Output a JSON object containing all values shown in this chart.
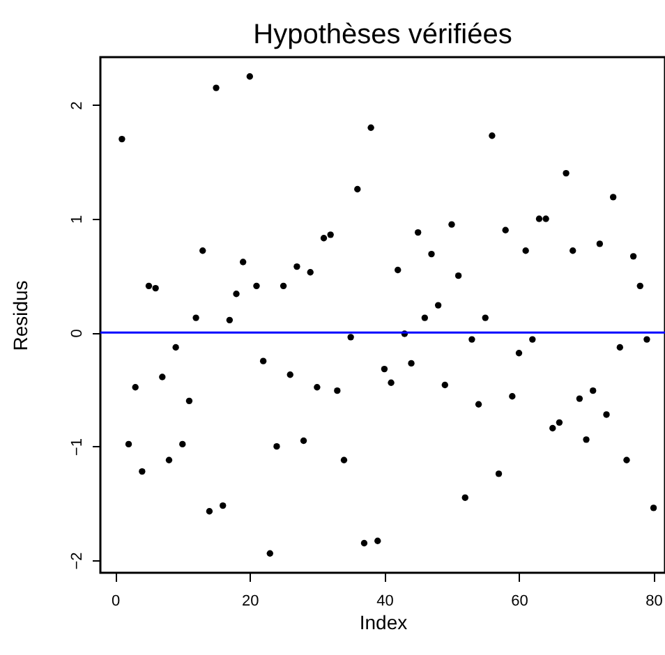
{
  "chart_data": {
    "type": "scatter",
    "title": "Hypothèses vérifiées",
    "xlabel": "Index",
    "ylabel": "Residus",
    "x": [
      1,
      2,
      3,
      4,
      5,
      6,
      7,
      8,
      9,
      10,
      11,
      12,
      13,
      14,
      15,
      16,
      17,
      18,
      19,
      20,
      21,
      22,
      23,
      24,
      25,
      26,
      27,
      28,
      29,
      30,
      31,
      32,
      33,
      34,
      35,
      36,
      37,
      38,
      39,
      40,
      41,
      42,
      43,
      44,
      45,
      46,
      47,
      48,
      49,
      50,
      51,
      52,
      53,
      54,
      55,
      56,
      57,
      58,
      59,
      60,
      61,
      62,
      63,
      64,
      65,
      66,
      67,
      68,
      69,
      70,
      71,
      72,
      73,
      74,
      75,
      76,
      77,
      78,
      79,
      80
    ],
    "series": [
      {
        "color": "#000000",
        "values": [
          1.7,
          -0.98,
          -0.48,
          -1.22,
          0.41,
          0.39,
          -0.39,
          -1.12,
          -0.13,
          -0.98,
          -0.6,
          0.13,
          0.72,
          -1.57,
          2.15,
          -1.52,
          0.11,
          0.34,
          0.62,
          2.25,
          0.41,
          -0.25,
          -1.94,
          -1.0,
          0.41,
          -0.37,
          0.58,
          -0.95,
          0.53,
          -0.48,
          0.83,
          0.86,
          -0.51,
          -1.12,
          -0.04,
          1.26,
          -1.85,
          1.8,
          -1.83,
          -0.32,
          -0.44,
          0.55,
          -0.01,
          -0.27,
          0.88,
          0.13,
          0.69,
          0.24,
          -0.46,
          0.95,
          0.5,
          -1.45,
          -0.06,
          -0.63,
          0.13,
          1.73,
          -1.24,
          0.9,
          -0.56,
          -0.18,
          0.72,
          -0.06,
          1.0,
          1.0,
          -0.84,
          -0.79,
          1.4,
          0.72,
          -0.58,
          -0.94,
          -0.51,
          0.78,
          -0.72,
          1.19,
          -0.13,
          -1.12,
          0.67,
          0.41,
          -0.06,
          -1.54
        ]
      }
    ],
    "xlim": [
      -2.2,
      81.7
    ],
    "xticks": [
      0,
      20,
      40,
      60,
      80
    ],
    "ylim": [
      -2.11,
      2.42
    ],
    "yticks": [
      -2,
      -1,
      0,
      1,
      2
    ],
    "ref_lines": [
      {
        "axis": "y",
        "value": 0,
        "color": "#0000ff"
      }
    ],
    "marker": "circle",
    "grid": false
  }
}
